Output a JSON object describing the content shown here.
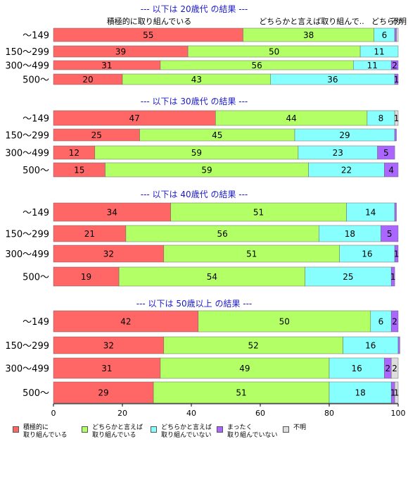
{
  "chart_data": {
    "type": "bar",
    "orientation": "horizontal",
    "stacked": true,
    "xlim": [
      0,
      100
    ],
    "xticks": [
      0,
      20,
      40,
      60,
      80,
      100
    ],
    "categories": [
      "～149",
      "150～299",
      "300～499",
      "500～"
    ],
    "series": [
      {
        "name": "積極的に\n取り組んでいる",
        "color": "#ff6666"
      },
      {
        "name": "どちらかと言えば\n取り組んでいる",
        "color": "#b3ff66"
      },
      {
        "name": "どちらかと言えば\n取り組んでいない",
        "color": "#88ffff"
      },
      {
        "name": "まったく\n取り組んでいない",
        "color": "#aa66ff"
      },
      {
        "name": "不明",
        "color": "#dddddd"
      }
    ],
    "column_headers": [
      "積極的に取り組んでいる",
      "どちらかと言えば取り組んで..",
      "どちらか",
      "不明"
    ],
    "panels": [
      {
        "title": "--- 以下は 20歳代 の結果 ---",
        "rows": [
          {
            "category": "～149",
            "values": [
              55,
              38,
              6,
              0.5,
              0.5
            ],
            "labels": [
              "55",
              "38",
              "6",
              "",
              ""
            ]
          },
          {
            "category": "150～299",
            "values": [
              39,
              50,
              11,
              0,
              0
            ],
            "labels": [
              "39",
              "50",
              "11",
              "",
              ""
            ]
          },
          {
            "category": "300～499",
            "values": [
              31,
              56,
              11,
              2,
              0
            ],
            "labels": [
              "31",
              "56",
              "11",
              "2",
              ""
            ]
          },
          {
            "category": "500～",
            "values": [
              20,
              43,
              36,
              1,
              0
            ],
            "labels": [
              "20",
              "43",
              "36",
              "1",
              ""
            ]
          }
        ]
      },
      {
        "title": "--- 以下は 30歳代 の結果 ---",
        "rows": [
          {
            "category": "～149",
            "values": [
              47,
              44,
              8,
              0,
              1
            ],
            "labels": [
              "47",
              "44",
              "8",
              "",
              "1"
            ]
          },
          {
            "category": "150～299",
            "values": [
              25,
              45,
              29,
              0.5,
              0
            ],
            "labels": [
              "25",
              "45",
              "29",
              "",
              ""
            ]
          },
          {
            "category": "300～499",
            "values": [
              12,
              59,
              23,
              5,
              0
            ],
            "labels": [
              "12",
              "59",
              "23",
              "5",
              ""
            ]
          },
          {
            "category": "500～",
            "values": [
              15,
              59,
              22,
              4,
              0
            ],
            "labels": [
              "15",
              "59",
              "22",
              "4",
              ""
            ]
          }
        ]
      },
      {
        "title": "--- 以下は 40歳代 の結果 ---",
        "rows": [
          {
            "category": "～149",
            "values": [
              34,
              51,
              14,
              0.5,
              0
            ],
            "labels": [
              "34",
              "51",
              "14",
              "",
              ""
            ]
          },
          {
            "category": "150～299",
            "values": [
              21,
              56,
              18,
              5,
              0
            ],
            "labels": [
              "21",
              "56",
              "18",
              "5",
              ""
            ]
          },
          {
            "category": "300～499",
            "values": [
              32,
              51,
              16,
              1,
              0
            ],
            "labels": [
              "32",
              "51",
              "16",
              "1",
              ""
            ]
          },
          {
            "category": "500～",
            "values": [
              19,
              54,
              25,
              1,
              0
            ],
            "labels": [
              "19",
              "54",
              "25",
              "1",
              ""
            ]
          }
        ]
      },
      {
        "title": "--- 以下は 50歳以上 の結果 ---",
        "rows": [
          {
            "category": "～149",
            "values": [
              42,
              50,
              6,
              2,
              0
            ],
            "labels": [
              "42",
              "50",
              "6",
              "2",
              ""
            ]
          },
          {
            "category": "150～299",
            "values": [
              32,
              52,
              16,
              0.5,
              0
            ],
            "labels": [
              "32",
              "52",
              "16",
              "",
              ""
            ]
          },
          {
            "category": "300～499",
            "values": [
              31,
              49,
              16,
              2,
              2
            ],
            "labels": [
              "31",
              "49",
              "16",
              "2",
              "2"
            ]
          },
          {
            "category": "500～",
            "values": [
              29,
              51,
              18,
              1,
              1
            ],
            "labels": [
              "29",
              "51",
              "18",
              "1",
              "1"
            ]
          }
        ]
      }
    ]
  }
}
